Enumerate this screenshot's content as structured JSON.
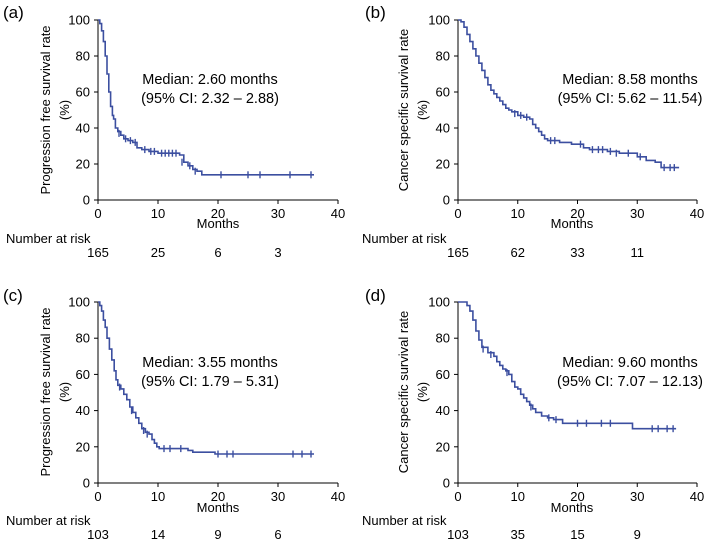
{
  "figure": {
    "panels": [
      {
        "label": "(a)",
        "ylabel": "Progression free survival rate",
        "ylabel_unit": "(%)",
        "xlabel": "Months",
        "annot_line1": "Median: 2.60 months",
        "annot_line2": "(95% CI: 2.32 – 2.88)",
        "risk_title": "Number at risk",
        "risk_values": [
          "165",
          "25",
          "6",
          "3"
        ]
      },
      {
        "label": "(b)",
        "ylabel": "Cancer specific survival rate",
        "ylabel_unit": "(%)",
        "xlabel": "Months",
        "annot_line1": "Median: 8.58 months",
        "annot_line2": "(95% CI: 5.62 – 11.54)",
        "risk_title": "Number at risk",
        "risk_values": [
          "165",
          "62",
          "33",
          "11"
        ]
      },
      {
        "label": "(c)",
        "ylabel": "Progression free survival rate",
        "ylabel_unit": "(%)",
        "xlabel": "Months",
        "annot_line1": "Median: 3.55 months",
        "annot_line2": "(95% CI: 1.79 – 5.31)",
        "risk_title": "Number at risk",
        "risk_values": [
          "103",
          "14",
          "9",
          "6"
        ]
      },
      {
        "label": "(d)",
        "ylabel": "Cancer specific survival rate",
        "ylabel_unit": "(%)",
        "xlabel": "Months",
        "annot_line1": "Median: 9.60 months",
        "annot_line2": "(95% CI: 7.07 – 12.13)",
        "risk_title": "Number at risk",
        "risk_values": [
          "103",
          "35",
          "15",
          "9"
        ]
      }
    ]
  },
  "chart_data": [
    {
      "type": "line",
      "title": "",
      "xlabel": "Months",
      "ylabel": "Progression free survival rate (%)",
      "xlim": [
        0,
        40
      ],
      "ylim": [
        0,
        100
      ],
      "xticks": [
        0,
        10,
        20,
        30,
        40
      ],
      "yticks": [
        0,
        20,
        40,
        60,
        80,
        100
      ],
      "line_color": "#3c4fa0",
      "step": true,
      "grid": false,
      "series": [
        {
          "points": [
            [
              0,
              100
            ],
            [
              0.3,
              98
            ],
            [
              0.6,
              94
            ],
            [
              0.9,
              88
            ],
            [
              1.2,
              80
            ],
            [
              1.5,
              70
            ],
            [
              1.8,
              60
            ],
            [
              2.1,
              52
            ],
            [
              2.4,
              47
            ],
            [
              2.6,
              45
            ],
            [
              2.9,
              40
            ],
            [
              3.3,
              38
            ],
            [
              3.8,
              36
            ],
            [
              4.3,
              34
            ],
            [
              5.0,
              33
            ],
            [
              5.8,
              32
            ],
            [
              6.5,
              29
            ],
            [
              7.3,
              28
            ],
            [
              8.5,
              27
            ],
            [
              10.0,
              26
            ],
            [
              12.0,
              26
            ],
            [
              13.6,
              25
            ],
            [
              14.3,
              21
            ],
            [
              15.0,
              19
            ],
            [
              15.8,
              17
            ],
            [
              16.5,
              16
            ],
            [
              17.3,
              14
            ],
            [
              36,
              14
            ]
          ],
          "censored": [
            [
              3.5,
              37
            ],
            [
              4.6,
              34
            ],
            [
              5.4,
              33
            ],
            [
              6.2,
              32
            ],
            [
              7.8,
              28
            ],
            [
              8.8,
              27
            ],
            [
              9.4,
              27
            ],
            [
              10.6,
              26
            ],
            [
              11.2,
              26
            ],
            [
              11.8,
              26
            ],
            [
              12.4,
              26
            ],
            [
              13.0,
              26
            ],
            [
              14.0,
              21
            ],
            [
              15.3,
              19
            ],
            [
              16.2,
              16
            ],
            [
              20.5,
              14
            ],
            [
              25.0,
              14
            ],
            [
              27.0,
              14
            ],
            [
              32.0,
              14
            ],
            [
              35.5,
              14
            ]
          ]
        }
      ],
      "risk_table": {
        "x": [
          0,
          10,
          20,
          30
        ],
        "n": [
          165,
          25,
          6,
          3
        ]
      },
      "annotations": [
        "Median: 2.60 months",
        "(95% CI: 2.32 – 2.88)"
      ]
    },
    {
      "type": "line",
      "title": "",
      "xlabel": "Months",
      "ylabel": "Cancer specific survival rate (%)",
      "xlim": [
        0,
        40
      ],
      "ylim": [
        0,
        100
      ],
      "xticks": [
        0,
        10,
        20,
        30,
        40
      ],
      "yticks": [
        0,
        20,
        40,
        60,
        80,
        100
      ],
      "line_color": "#3c4fa0",
      "step": true,
      "grid": false,
      "series": [
        {
          "points": [
            [
              0,
              100
            ],
            [
              0.5,
              99
            ],
            [
              1.0,
              96
            ],
            [
              1.5,
              92
            ],
            [
              2.0,
              88
            ],
            [
              2.5,
              84
            ],
            [
              3.0,
              80
            ],
            [
              3.5,
              76
            ],
            [
              4.0,
              72
            ],
            [
              4.5,
              68
            ],
            [
              5.0,
              64
            ],
            [
              5.5,
              61
            ],
            [
              6.0,
              59
            ],
            [
              6.5,
              57
            ],
            [
              7.0,
              55
            ],
            [
              7.5,
              53
            ],
            [
              8.0,
              51
            ],
            [
              8.5,
              50
            ],
            [
              9.0,
              49
            ],
            [
              10.0,
              47
            ],
            [
              11.0,
              46
            ],
            [
              12.0,
              45
            ],
            [
              12.5,
              42
            ],
            [
              13.0,
              40
            ],
            [
              13.5,
              38
            ],
            [
              14.0,
              36
            ],
            [
              14.5,
              34
            ],
            [
              15.0,
              33
            ],
            [
              17.0,
              32
            ],
            [
              19.0,
              31
            ],
            [
              21.0,
              29
            ],
            [
              22.0,
              28
            ],
            [
              25.0,
              27
            ],
            [
              27.0,
              26
            ],
            [
              30.0,
              24
            ],
            [
              31.5,
              22
            ],
            [
              33.0,
              21
            ],
            [
              34.0,
              18
            ],
            [
              37,
              18
            ]
          ],
          "censored": [
            [
              9.5,
              48
            ],
            [
              10.5,
              47
            ],
            [
              11.5,
              46
            ],
            [
              15.5,
              33
            ],
            [
              16.2,
              33
            ],
            [
              20.5,
              31
            ],
            [
              22.5,
              28
            ],
            [
              23.5,
              28
            ],
            [
              24.2,
              28
            ],
            [
              25.5,
              27
            ],
            [
              26.5,
              26
            ],
            [
              28.5,
              26
            ],
            [
              30.5,
              24
            ],
            [
              34.5,
              18
            ],
            [
              35.5,
              18
            ],
            [
              36.2,
              18
            ]
          ]
        }
      ],
      "risk_table": {
        "x": [
          0,
          10,
          20,
          30
        ],
        "n": [
          165,
          62,
          33,
          11
        ]
      },
      "annotations": [
        "Median: 8.58 months",
        "(95% CI: 5.62 – 11.54)"
      ]
    },
    {
      "type": "line",
      "title": "",
      "xlabel": "Months",
      "ylabel": "Progression free survival rate (%)",
      "xlim": [
        0,
        40
      ],
      "ylim": [
        0,
        100
      ],
      "xticks": [
        0,
        10,
        20,
        30,
        40
      ],
      "yticks": [
        0,
        20,
        40,
        60,
        80,
        100
      ],
      "line_color": "#3c4fa0",
      "step": true,
      "grid": false,
      "series": [
        {
          "points": [
            [
              0,
              100
            ],
            [
              0.3,
              98
            ],
            [
              0.6,
              95
            ],
            [
              0.9,
              90
            ],
            [
              1.2,
              86
            ],
            [
              1.5,
              80
            ],
            [
              1.9,
              74
            ],
            [
              2.3,
              68
            ],
            [
              2.7,
              62
            ],
            [
              3.0,
              57
            ],
            [
              3.3,
              54
            ],
            [
              3.8,
              52
            ],
            [
              4.3,
              49
            ],
            [
              4.8,
              46
            ],
            [
              5.3,
              42
            ],
            [
              5.8,
              39
            ],
            [
              6.3,
              36
            ],
            [
              6.8,
              33
            ],
            [
              7.3,
              30
            ],
            [
              7.9,
              28
            ],
            [
              8.5,
              27
            ],
            [
              9.0,
              24
            ],
            [
              9.4,
              22
            ],
            [
              9.8,
              20
            ],
            [
              10.2,
              19
            ],
            [
              15.0,
              18
            ],
            [
              15.8,
              17
            ],
            [
              19.5,
              16
            ],
            [
              36,
              16
            ]
          ],
          "censored": [
            [
              3.6,
              53
            ],
            [
              5.6,
              40
            ],
            [
              7.6,
              29
            ],
            [
              8.2,
              27
            ],
            [
              11.0,
              19
            ],
            [
              12.0,
              19
            ],
            [
              13.8,
              19
            ],
            [
              20.0,
              16
            ],
            [
              21.5,
              16
            ],
            [
              22.5,
              16
            ],
            [
              32.5,
              16
            ],
            [
              34.0,
              16
            ],
            [
              35.5,
              16
            ]
          ]
        }
      ],
      "risk_table": {
        "x": [
          0,
          10,
          20,
          30
        ],
        "n": [
          103,
          14,
          9,
          6
        ]
      },
      "annotations": [
        "Median: 3.55 months",
        "(95% CI: 1.79 – 5.31)"
      ]
    },
    {
      "type": "line",
      "title": "",
      "xlabel": "Months",
      "ylabel": "Cancer specific survival rate (%)",
      "xlim": [
        0,
        40
      ],
      "ylim": [
        0,
        100
      ],
      "xticks": [
        0,
        10,
        20,
        30,
        40
      ],
      "yticks": [
        0,
        20,
        40,
        60,
        80,
        100
      ],
      "line_color": "#3c4fa0",
      "step": true,
      "grid": false,
      "series": [
        {
          "points": [
            [
              0,
              100
            ],
            [
              1.0,
              100
            ],
            [
              1.5,
              98
            ],
            [
              2.0,
              95
            ],
            [
              2.5,
              90
            ],
            [
              3.0,
              84
            ],
            [
              3.5,
              79
            ],
            [
              4.0,
              75
            ],
            [
              5.0,
              72
            ],
            [
              6.0,
              70
            ],
            [
              6.5,
              67
            ],
            [
              7.0,
              65
            ],
            [
              7.5,
              63
            ],
            [
              8.0,
              62
            ],
            [
              8.5,
              60
            ],
            [
              9.0,
              56
            ],
            [
              9.5,
              53
            ],
            [
              10.0,
              52
            ],
            [
              10.5,
              49
            ],
            [
              11.0,
              47
            ],
            [
              11.5,
              45
            ],
            [
              12.0,
              43
            ],
            [
              12.5,
              41
            ],
            [
              13.0,
              39
            ],
            [
              14.0,
              37
            ],
            [
              15.0,
              36
            ],
            [
              16.0,
              35
            ],
            [
              17.5,
              33
            ],
            [
              29.0,
              33
            ],
            [
              29.2,
              30
            ],
            [
              36.5,
              30
            ]
          ],
          "censored": [
            [
              4.2,
              74
            ],
            [
              5.5,
              71
            ],
            [
              8.2,
              61
            ],
            [
              12.2,
              42
            ],
            [
              15.2,
              36
            ],
            [
              16.4,
              35
            ],
            [
              20.0,
              33
            ],
            [
              21.5,
              33
            ],
            [
              24.0,
              33
            ],
            [
              25.5,
              33
            ],
            [
              32.5,
              30
            ],
            [
              33.5,
              30
            ],
            [
              35.0,
              30
            ],
            [
              36.0,
              30
            ]
          ]
        }
      ],
      "risk_table": {
        "x": [
          0,
          10,
          20,
          30
        ],
        "n": [
          103,
          35,
          15,
          9
        ]
      },
      "annotations": [
        "Median: 9.60 months",
        "(95% CI: 7.07 – 12.13)"
      ]
    }
  ]
}
